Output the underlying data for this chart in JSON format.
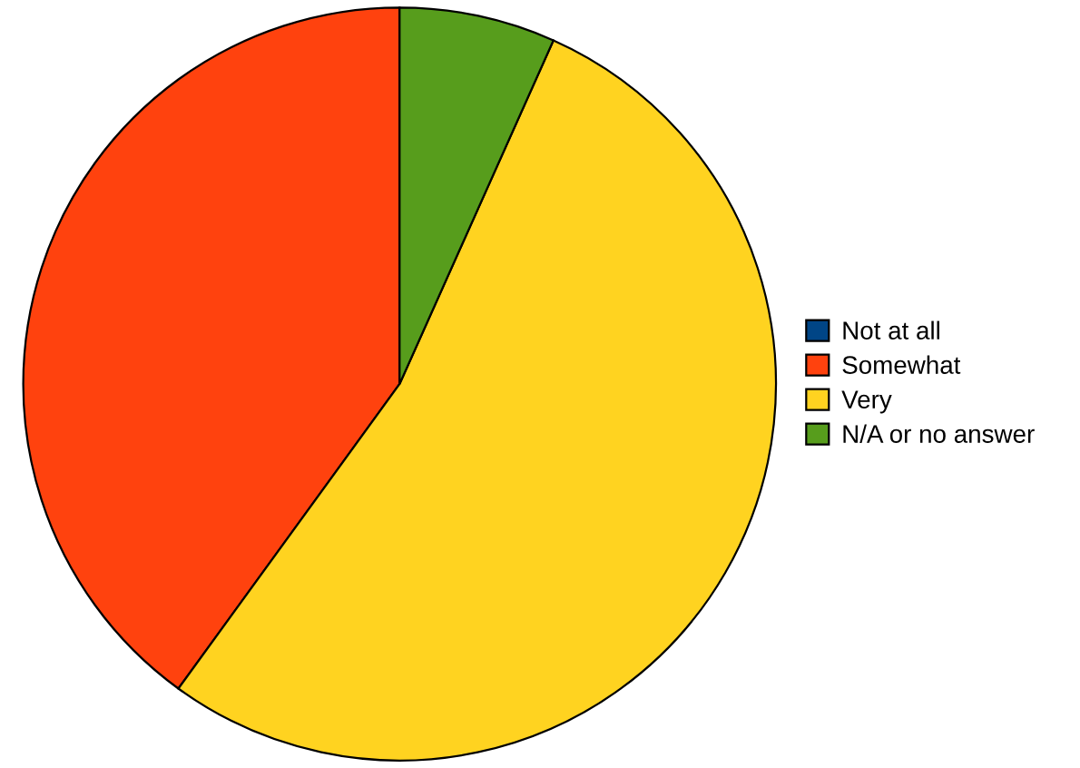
{
  "chart_data": {
    "type": "pie",
    "categories": [
      "Not at all",
      "Somewhat",
      "Very",
      "N/A or no answer"
    ],
    "values": [
      0,
      40,
      53.3,
      6.7
    ],
    "colors": [
      "#004586",
      "#ff420e",
      "#ffd320",
      "#579d1c"
    ],
    "legend": "right"
  }
}
